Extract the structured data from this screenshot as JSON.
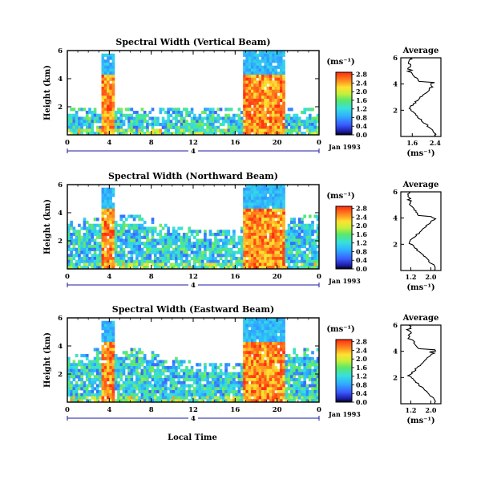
{
  "x_axis_label": "Local Time",
  "chart_data": [
    {
      "type": "heatmap",
      "title": "Spectral Width (Vertical Beam)",
      "ylabel": "Height (km)",
      "xlabel": "",
      "xlim": [
        0,
        24
      ],
      "ylim": [
        0,
        6
      ],
      "x_ticks": [
        "0",
        "4",
        "8",
        "12",
        "16",
        "20",
        "0"
      ],
      "y_ticks": [
        "2",
        "4",
        "6"
      ],
      "date_label": "Jan 1993",
      "day_marker": "4",
      "colorbar": {
        "label": "(ms⁻¹)",
        "ticks": [
          "0.0",
          "0.4",
          "0.8",
          "1.2",
          "1.6",
          "2.0",
          "2.4",
          "2.8"
        ],
        "range": [
          0,
          2.9
        ]
      },
      "average_profile": {
        "title": "Average",
        "xlabel": "(ms⁻¹)",
        "x_ticks": [
          "1.6",
          "2.4"
        ],
        "xlim": [
          1.2,
          2.6
        ],
        "ylim": [
          0,
          6
        ]
      }
    },
    {
      "type": "heatmap",
      "title": "Spectral Width (Northward Beam)",
      "ylabel": "Height (km)",
      "xlabel": "",
      "xlim": [
        0,
        24
      ],
      "ylim": [
        0,
        6
      ],
      "x_ticks": [
        "0",
        "4",
        "8",
        "12",
        "16",
        "20",
        "0"
      ],
      "y_ticks": [
        "2",
        "4",
        "6"
      ],
      "date_label": "Jan 1993",
      "day_marker": "4",
      "colorbar": {
        "label": "(ms⁻¹)",
        "ticks": [
          "0.0",
          "0.4",
          "0.8",
          "1.2",
          "1.6",
          "2.0",
          "2.4",
          "2.8"
        ],
        "range": [
          0,
          2.9
        ]
      },
      "average_profile": {
        "title": "Average",
        "xlabel": "(ms⁻¹)",
        "x_ticks": [
          "1.2",
          "2.0"
        ],
        "xlim": [
          0.8,
          2.4
        ],
        "ylim": [
          0,
          6
        ]
      }
    },
    {
      "type": "heatmap",
      "title": "Spectral Width (Eastward Beam)",
      "ylabel": "Height (km)",
      "xlabel": "",
      "xlim": [
        0,
        24
      ],
      "ylim": [
        0,
        6
      ],
      "x_ticks": [
        "0",
        "4",
        "8",
        "12",
        "16",
        "20",
        "0"
      ],
      "y_ticks": [
        "2",
        "4",
        "6"
      ],
      "date_label": "Jan 1993",
      "day_marker": "4",
      "colorbar": {
        "label": "(ms⁻¹)",
        "ticks": [
          "0.0",
          "0.4",
          "0.8",
          "1.2",
          "1.6",
          "2.0",
          "2.4",
          "2.8"
        ],
        "range": [
          0,
          2.9
        ]
      },
      "average_profile": {
        "title": "Average",
        "xlabel": "(ms⁻¹)",
        "x_ticks": [
          "1.2",
          "2.0"
        ],
        "xlim": [
          0.8,
          2.4
        ],
        "ylim": [
          0,
          6
        ]
      }
    }
  ]
}
